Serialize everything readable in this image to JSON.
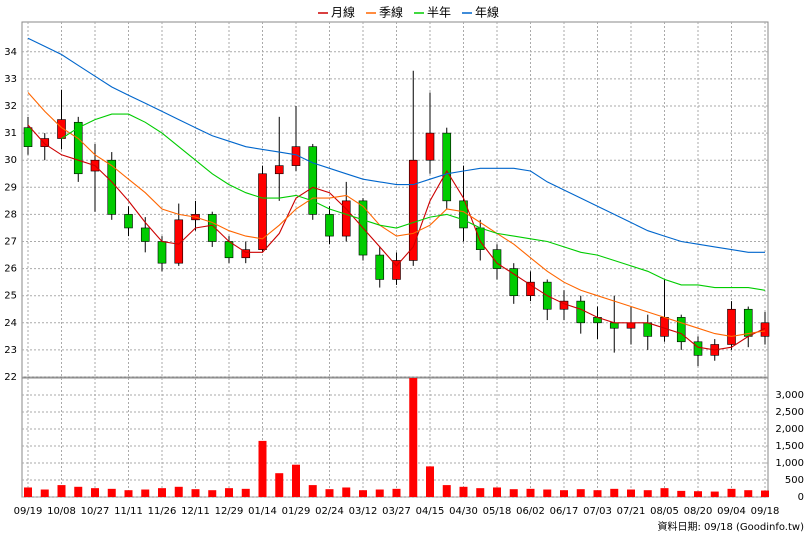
{
  "chart_data": [
    {
      "type": "candlestick",
      "categories": [
        "09/19",
        null,
        "10/08",
        null,
        "10/27",
        null,
        "11/11",
        null,
        "11/26",
        null,
        "12/11",
        null,
        "12/29",
        null,
        "01/14",
        null,
        "01/29",
        null,
        "02/24",
        null,
        "03/12",
        null,
        "03/27",
        null,
        "04/15",
        null,
        "04/30",
        null,
        "05/18",
        null,
        "06/02",
        null,
        "06/17",
        null,
        "07/03",
        null,
        "07/21",
        null,
        "08/05",
        null,
        "08/20",
        null,
        "09/04",
        null,
        "09/18"
      ],
      "open": [
        31.2,
        30.5,
        30.8,
        31.4,
        29.6,
        30.0,
        28.0,
        27.5,
        27.0,
        26.2,
        27.8,
        28.0,
        27.0,
        26.4,
        26.7,
        29.5,
        29.8,
        30.5,
        28.0,
        27.2,
        28.5,
        26.5,
        25.6,
        26.3,
        30.0,
        31.0,
        28.5,
        27.5,
        26.7,
        26.0,
        25.0,
        25.5,
        24.5,
        24.8,
        24.2,
        24.0,
        23.8,
        24.0,
        23.5,
        24.2,
        23.3,
        22.8,
        23.2,
        24.5,
        23.5
      ],
      "high": [
        31.6,
        31.0,
        32.6,
        31.6,
        30.6,
        30.3,
        28.3,
        27.9,
        27.2,
        28.4,
        28.5,
        28.1,
        27.2,
        27.0,
        29.8,
        31.6,
        32.0,
        30.6,
        28.3,
        29.2,
        28.6,
        26.8,
        26.6,
        33.3,
        32.5,
        31.2,
        29.8,
        27.8,
        26.9,
        26.2,
        25.9,
        25.6,
        25.2,
        25.0,
        24.6,
        25.0,
        24.6,
        24.3,
        25.6,
        24.3,
        23.5,
        23.4,
        24.8,
        24.6,
        24.4
      ],
      "low": [
        30.2,
        30.0,
        30.4,
        29.2,
        28.1,
        27.8,
        27.2,
        26.6,
        25.9,
        26.1,
        27.4,
        26.8,
        26.2,
        26.2,
        26.6,
        28.5,
        29.6,
        27.8,
        26.9,
        27.0,
        26.3,
        25.3,
        25.4,
        26.1,
        29.5,
        28.2,
        27.0,
        26.3,
        25.6,
        24.7,
        24.8,
        24.1,
        24.1,
        23.6,
        23.4,
        22.9,
        23.2,
        23.0,
        23.3,
        23.0,
        22.4,
        22.6,
        23.0,
        23.1,
        23.2
      ],
      "close": [
        30.5,
        30.8,
        31.5,
        29.5,
        30.0,
        28.0,
        27.5,
        27.0,
        26.2,
        27.8,
        28.0,
        27.0,
        26.4,
        26.7,
        29.5,
        29.8,
        30.5,
        28.0,
        27.2,
        28.5,
        26.5,
        25.6,
        26.3,
        30.0,
        31.0,
        28.5,
        27.5,
        26.7,
        26.0,
        25.0,
        25.5,
        24.5,
        24.8,
        24.0,
        24.0,
        23.8,
        24.0,
        23.5,
        24.2,
        23.3,
        22.8,
        23.2,
        24.5,
        23.5,
        24.0
      ],
      "up_color": "#ff0000",
      "down_color": "#00cc00",
      "series": [
        {
          "name": "月線",
          "color": "#cc0000",
          "values": [
            31.3,
            30.6,
            30.2,
            30.0,
            29.8,
            29.2,
            28.5,
            27.7,
            27.0,
            26.9,
            27.5,
            27.6,
            27.0,
            26.6,
            26.6,
            27.3,
            28.6,
            29.0,
            28.8,
            28.2,
            27.5,
            26.8,
            26.1,
            26.8,
            28.5,
            29.6,
            28.6,
            27.0,
            26.2,
            25.8,
            25.4,
            25.0,
            24.7,
            24.5,
            24.2,
            24.0,
            24.0,
            24.0,
            23.8,
            23.6,
            23.1,
            23.0,
            23.1,
            23.5,
            23.8
          ]
        },
        {
          "name": "季線",
          "color": "#ff6600",
          "values": [
            32.5,
            31.8,
            31.2,
            30.8,
            30.2,
            29.8,
            29.3,
            28.8,
            28.2,
            28.0,
            27.9,
            27.7,
            27.4,
            27.2,
            27.1,
            27.6,
            28.2,
            28.6,
            28.6,
            28.7,
            28.3,
            27.6,
            27.2,
            27.3,
            27.6,
            28.2,
            28.1,
            27.7,
            27.3,
            26.9,
            26.4,
            25.9,
            25.5,
            25.2,
            25.0,
            24.8,
            24.6,
            24.4,
            24.2,
            24.0,
            23.8,
            23.6,
            23.5,
            23.6,
            23.7
          ]
        },
        {
          "name": "半年",
          "color": "#00cc00",
          "values": [
            null,
            null,
            30.8,
            31.2,
            31.5,
            31.7,
            31.7,
            31.4,
            31.0,
            30.5,
            30.0,
            29.5,
            29.1,
            28.8,
            28.6,
            28.6,
            28.7,
            28.5,
            28.2,
            28.0,
            27.8,
            27.6,
            27.5,
            27.7,
            27.9,
            28.0,
            27.8,
            27.5,
            27.3,
            27.2,
            27.1,
            27.0,
            26.8,
            26.6,
            26.5,
            26.3,
            26.1,
            25.9,
            25.6,
            25.4,
            25.4,
            25.3,
            25.3,
            25.3,
            25.2
          ]
        },
        {
          "name": "年線",
          "color": "#0066cc",
          "values": [
            34.5,
            34.2,
            33.9,
            33.5,
            33.1,
            32.7,
            32.4,
            32.1,
            31.8,
            31.5,
            31.2,
            30.9,
            30.7,
            30.5,
            30.4,
            30.3,
            30.2,
            29.9,
            29.7,
            29.5,
            29.3,
            29.2,
            29.1,
            29.1,
            29.3,
            29.5,
            29.6,
            29.7,
            29.7,
            29.7,
            29.6,
            29.2,
            28.9,
            28.6,
            28.3,
            28.0,
            27.7,
            27.4,
            27.2,
            27.0,
            26.9,
            26.8,
            26.7,
            26.6,
            26.6
          ]
        }
      ],
      "ylim": [
        22,
        35.1
      ],
      "yticks": [
        22,
        23,
        24,
        25,
        26,
        27,
        28,
        29,
        30,
        31,
        32,
        33,
        34
      ],
      "grid": true,
      "legend": "top"
    },
    {
      "type": "bar",
      "color": "#ff0000",
      "values": [
        280,
        220,
        350,
        300,
        260,
        240,
        200,
        220,
        260,
        300,
        230,
        200,
        260,
        240,
        1650,
        700,
        950,
        350,
        230,
        280,
        200,
        220,
        240,
        3500,
        900,
        350,
        300,
        260,
        280,
        230,
        240,
        220,
        200,
        230,
        200,
        240,
        220,
        200,
        260,
        180,
        170,
        160,
        240,
        200,
        190
      ],
      "ylim": [
        0,
        3500
      ],
      "yticks": [
        0,
        500,
        {
          "value": 1000,
          "label": "1,000"
        },
        {
          "value": 1500,
          "label": "1,500"
        },
        {
          "value": 2000,
          "label": "2,000"
        },
        {
          "value": 2500,
          "label": "2,500"
        },
        {
          "value": 3000,
          "label": "3,000"
        }
      ],
      "grid": true
    }
  ],
  "note": "資料日期: 09/18 (Goodinfo.tw)"
}
